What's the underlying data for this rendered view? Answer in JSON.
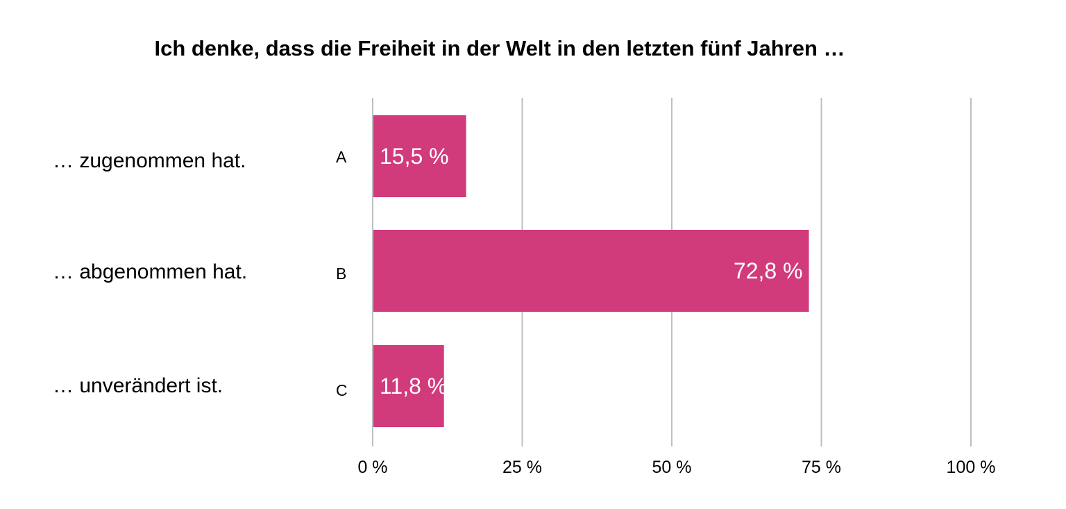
{
  "chart_data": {
    "type": "bar",
    "orientation": "horizontal",
    "title": "Ich denke, dass die Freiheit in der Welt in den letzten fünf Jahren …",
    "categories": [
      "… zugenommen hat.",
      "… abgenommen hat.",
      "… unverändert ist."
    ],
    "codes": [
      "A",
      "B",
      "C"
    ],
    "values": [
      15.5,
      72.8,
      11.8
    ],
    "value_labels": [
      "15,5 %",
      "72,8 %",
      "11,8 %"
    ],
    "xlim": [
      0,
      100
    ],
    "xticks": [
      0,
      25,
      50,
      75,
      100
    ],
    "xtick_labels": [
      "0 %",
      "25 %",
      "50 %",
      "75 %",
      "100 %"
    ],
    "xlabel": "",
    "ylabel": "",
    "grid": true,
    "legend": "none",
    "colors": {
      "bar": "#d13a7b",
      "grid": "#bfbfbf",
      "value_label": "#ffffff"
    }
  }
}
